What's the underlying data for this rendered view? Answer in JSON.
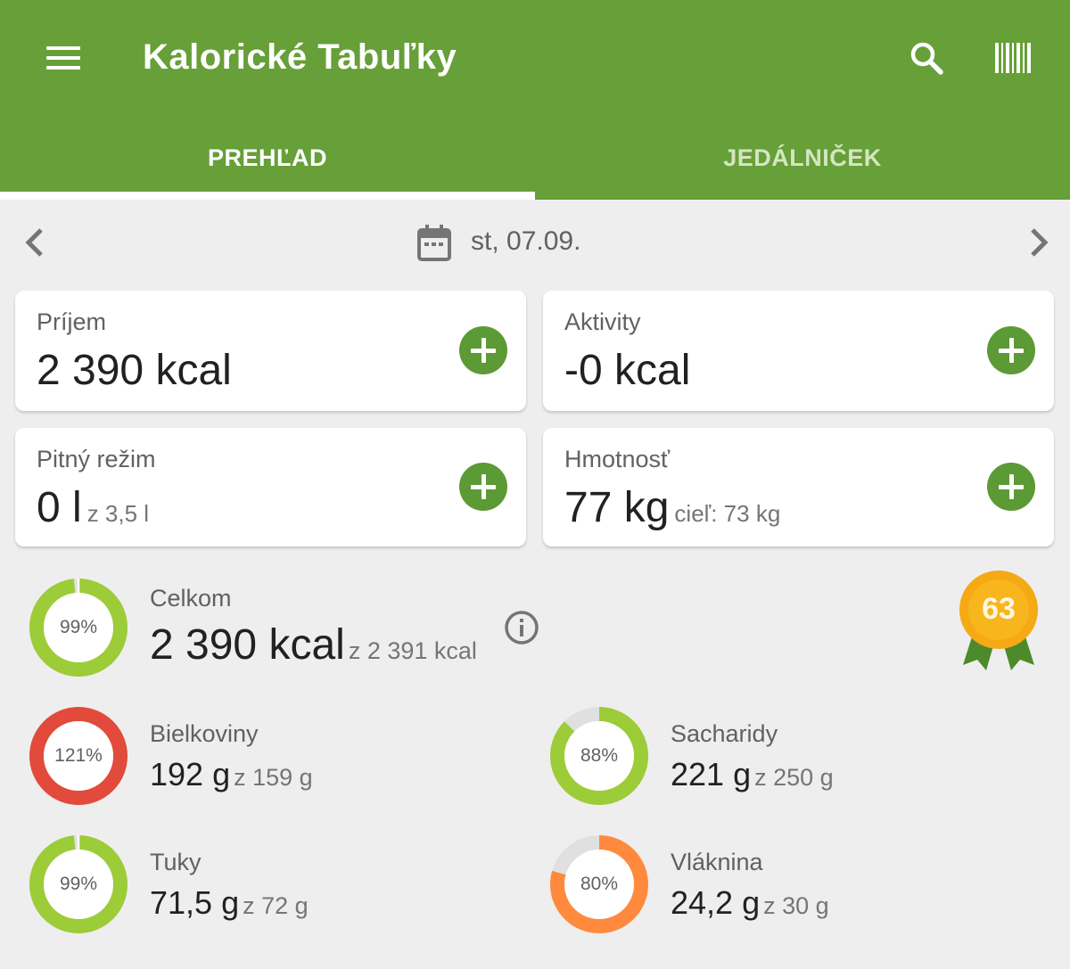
{
  "app": {
    "title": "Kalorické Tabuľky"
  },
  "tabs": [
    {
      "label": "PREHĽAD",
      "active": true
    },
    {
      "label": "JEDÁLNIČEK",
      "active": false
    }
  ],
  "date": {
    "text": "st, 07.09."
  },
  "cards": {
    "intake": {
      "label": "Príjem",
      "value": "2 390 kcal"
    },
    "activities": {
      "label": "Aktivity",
      "value": "-0 kcal"
    },
    "water": {
      "label": "Pitný režim",
      "value": "0 l",
      "goal": "z 3,5 l"
    },
    "weight": {
      "label": "Hmotnosť",
      "value": "77 kg",
      "goal": "cieľ: 73 kg"
    }
  },
  "total": {
    "label": "Celkom",
    "value": "2 390 kcal",
    "goal": "z 2 391 kcal",
    "percent_text": "99%",
    "percent": 99
  },
  "nutrients": {
    "protein": {
      "label": "Bielkoviny",
      "value": "192 g",
      "goal": "z 159 g",
      "percent_text": "121%",
      "percent": 121
    },
    "carbs": {
      "label": "Sacharidy",
      "value": "221 g",
      "goal": "z 250 g",
      "percent_text": "88%",
      "percent": 88
    },
    "fat": {
      "label": "Tuky",
      "value": "71,5 g",
      "goal": "z 72 g",
      "percent_text": "99%",
      "percent": 99
    },
    "fiber": {
      "label": "Vláknina",
      "value": "24,2 g",
      "goal": "z 30 g",
      "percent_text": "80%",
      "percent": 80
    }
  },
  "score": {
    "value": "63"
  },
  "colors": {
    "primary": "#679f38",
    "ring_green": "#9ccc37",
    "ring_red": "#e24a3b",
    "ring_orange": "#ff8a3d",
    "ring_track": "#e0e0e0",
    "badge_gold": "#f5a914"
  },
  "icons": [
    "menu-icon",
    "search-icon",
    "barcode-icon",
    "chevron-left-icon",
    "calendar-icon",
    "chevron-right-icon",
    "plus-icon",
    "info-icon",
    "award-badge-icon"
  ]
}
